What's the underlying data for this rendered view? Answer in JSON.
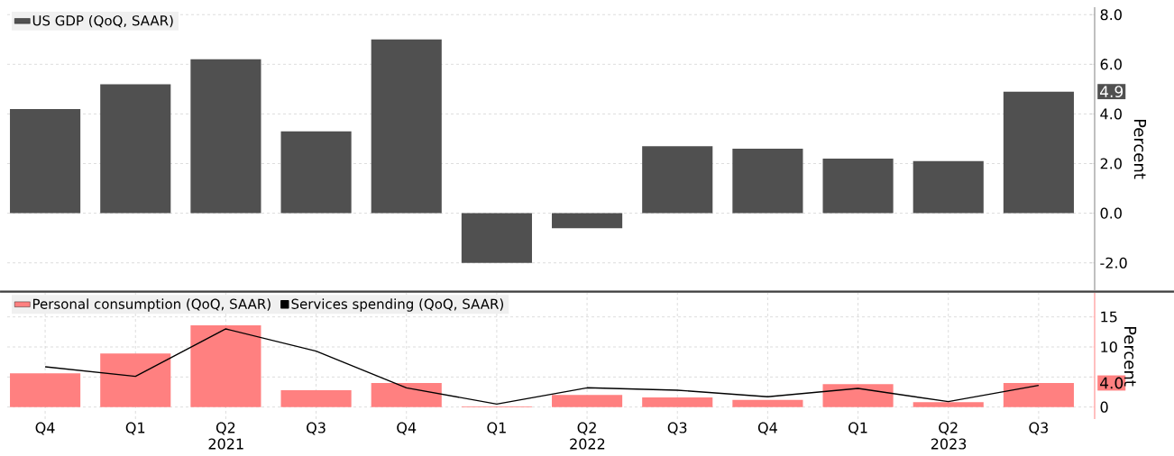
{
  "chart_data": [
    {
      "type": "bar",
      "categories": [
        null,
        null,
        null,
        null,
        null,
        null,
        null,
        null,
        null,
        null,
        null,
        null
      ],
      "series": [
        {
          "name": "US GDP (QoQ, SAAR)",
          "color": "#505050",
          "values": [
            4.2,
            5.2,
            6.2,
            3.3,
            7.0,
            -2.0,
            -0.6,
            2.7,
            2.6,
            2.2,
            2.1,
            4.9
          ]
        }
      ],
      "ylabel": "Percent",
      "ylim": [
        -3.1,
        8.3
      ],
      "yticks": [
        {
          "value": -2,
          "label": "-2.0"
        },
        {
          "value": 0,
          "label": "0.0"
        },
        {
          "value": 2,
          "label": "2.0"
        },
        {
          "value": 4,
          "label": "4.0"
        },
        {
          "value": 6,
          "label": "6.0"
        },
        {
          "value": 8,
          "label": "8.0"
        }
      ],
      "grid": true,
      "legend": "top left",
      "tick_labels": "y",
      "annotations": [
        "4.9"
      ]
    },
    {
      "type": "bar",
      "categories": [
        "Q4",
        "Q1",
        "Q2 2021",
        "Q3",
        "Q4",
        "Q1",
        "Q2 2022",
        "Q3",
        "Q4",
        "Q1",
        "Q2 2023",
        "Q3"
      ],
      "series": [
        {
          "name": "Personal consumption (QoQ, SAAR)",
          "color": "#ff8080",
          "values": [
            5.6,
            8.9,
            13.6,
            2.8,
            4.0,
            0.1,
            2.0,
            1.6,
            1.2,
            3.8,
            0.8,
            4.0
          ]
        },
        {
          "name": "Services spending (QoQ, SAAR)",
          "type": "line",
          "color": "#000000",
          "values": [
            6.7,
            5.1,
            13.0,
            9.3,
            3.2,
            0.5,
            3.2,
            2.8,
            1.7,
            3.1,
            0.9,
            3.6
          ]
        }
      ],
      "ylabel": "Percent",
      "ylim": [
        -2,
        19
      ],
      "yticks": [
        0,
        {
          "value": 5,
          "label": null
        },
        10,
        15
      ],
      "grid": true,
      "legend": "top left",
      "annotations": [
        "4.0"
      ]
    }
  ]
}
